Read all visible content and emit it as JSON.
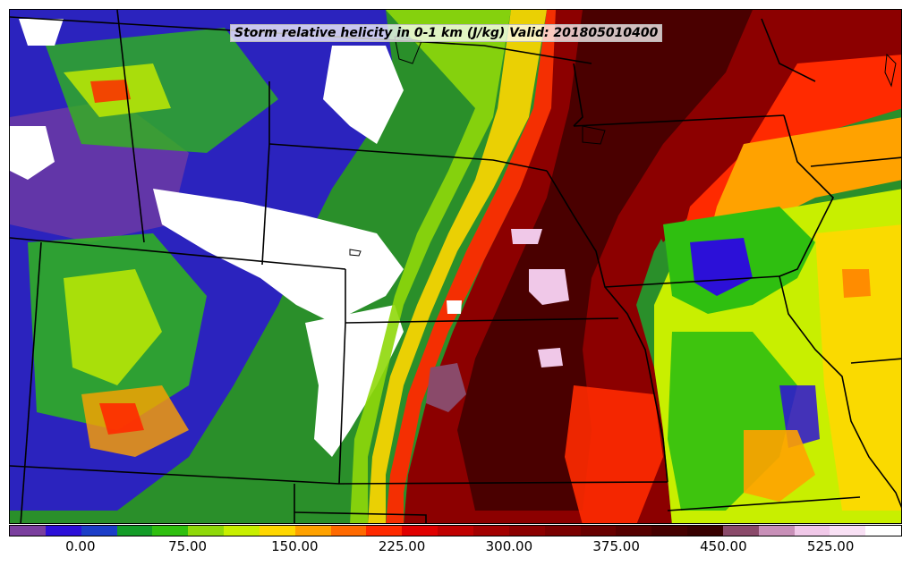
{
  "title": "Storm relative helicity in 0-1 km (J/kg) Valid: 201805010400",
  "colorbar": {
    "tick_labels": [
      "0.00",
      "75.00",
      "150.00",
      "225.00",
      "300.00",
      "375.00",
      "450.00",
      "525.00"
    ],
    "tick_values": [
      0,
      75,
      150,
      225,
      300,
      375,
      450,
      525
    ],
    "range": [
      -50,
      575
    ],
    "colors": [
      "#7a3f9e",
      "#2c10d8",
      "#1c3ec8",
      "#139c28",
      "#2fbf10",
      "#8fd80a",
      "#c8ef00",
      "#ffd700",
      "#ffa200",
      "#ff6a00",
      "#ff2a00",
      "#e00000",
      "#c00000",
      "#a30000",
      "#8c0000",
      "#7a0000",
      "#680000",
      "#560000",
      "#460000",
      "#380000",
      "#8a4a6a",
      "#c890b8",
      "#f0c8e8",
      "#f8e0f4",
      "#ffffff"
    ]
  },
  "map": {
    "field": "Storm relative helicity 0-1 km",
    "units": "J/kg",
    "region": "Central United States",
    "colors": {
      "white": "#ffffff",
      "purple": "#7a3f9e",
      "blue": "#2c10d8",
      "green": "#2a8f2a",
      "lightgreen": "#8fd80a",
      "yellowgreen": "#c8ef00",
      "yellow": "#ffd700",
      "orange": "#ff8c00",
      "red": "#ff2a00",
      "darkred": "#8c0000",
      "maroon": "#4a0000",
      "mauve": "#8a4a6a",
      "pink": "#f0c8e8",
      "border": "#000000"
    }
  }
}
